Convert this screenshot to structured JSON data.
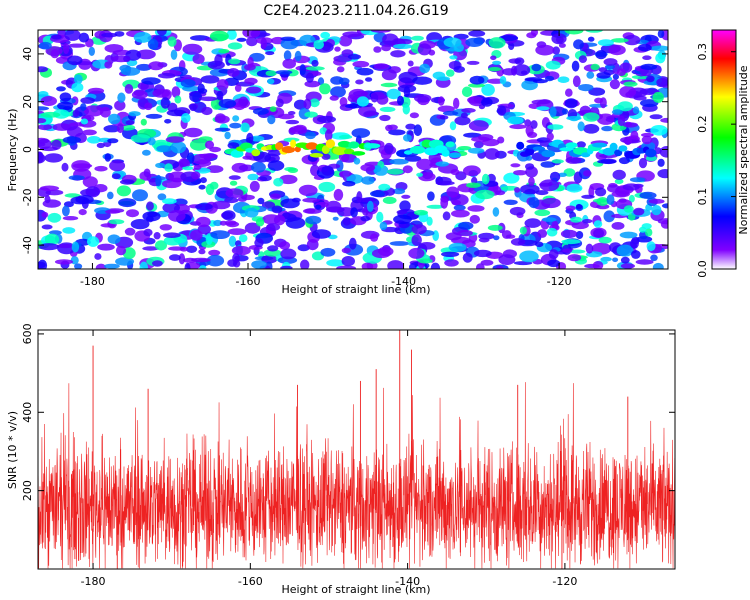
{
  "title": "C2E4.2023.211.04.26.G19",
  "chart_data": [
    {
      "type": "heatmap",
      "xlabel": "Height of straight line (km)",
      "ylabel": "Frequency (Hz)",
      "xlim": [
        -187,
        -106
      ],
      "ylim": [
        -50,
        50
      ],
      "x_ticks": [
        -180,
        -160,
        -140,
        -120
      ],
      "x_tick_labels": [
        "-180",
        "-160",
        "-140",
        "-120"
      ],
      "y_ticks": [
        -40,
        -20,
        0,
        20,
        40
      ],
      "y_tick_labels": [
        "-40",
        "-20",
        "0",
        "20",
        "40"
      ],
      "colorbar": {
        "label": "Normalized spectral amplitude",
        "range": [
          0,
          0.33
        ],
        "ticks": [
          0,
          0.1,
          0.2,
          0.3
        ],
        "tick_labels": [
          "0.0",
          "0.1",
          "0.2",
          "0.3"
        ],
        "colors": [
          "#ffffff",
          "#8000ff",
          "#0000ff",
          "#00ffff",
          "#00ff00",
          "#ffff00",
          "#ff0000",
          "#ff00ff"
        ]
      },
      "ridge": {
        "frequency_hz": 0,
        "segments": [
          {
            "x_start": -162,
            "x_end": -144,
            "peak_amplitude": 0.31
          },
          {
            "x_start": -140,
            "x_end": -133,
            "peak_amplitude": 0.2
          },
          {
            "x_start": -125,
            "x_end": -108,
            "peak_amplitude": 0.15
          }
        ]
      },
      "grid": false
    },
    {
      "type": "line",
      "xlabel": "Height of straight line (km)",
      "ylabel": "SNR (10 * v/v)",
      "xlim": [
        -187,
        -106
      ],
      "ylim": [
        0,
        610
      ],
      "x_ticks": [
        -180,
        -160,
        -140,
        -120
      ],
      "x_tick_labels": [
        "-180",
        "-160",
        "-140",
        "-120"
      ],
      "y_ticks": [
        200,
        400,
        600
      ],
      "y_tick_labels": [
        "200",
        "400",
        "600"
      ],
      "color": "#ee2222",
      "summary": {
        "baseline": 160,
        "typical_range": [
          40,
          320
        ]
      },
      "peaks": [
        {
          "x": -180,
          "y": 570
        },
        {
          "x": -173,
          "y": 460
        },
        {
          "x": -154,
          "y": 470
        },
        {
          "x": -146,
          "y": 480
        },
        {
          "x": -144,
          "y": 510
        },
        {
          "x": -141,
          "y": 610
        },
        {
          "x": -139.5,
          "y": 560
        },
        {
          "x": -126,
          "y": 470
        },
        {
          "x": -112,
          "y": 440
        }
      ],
      "grid": false
    }
  ]
}
